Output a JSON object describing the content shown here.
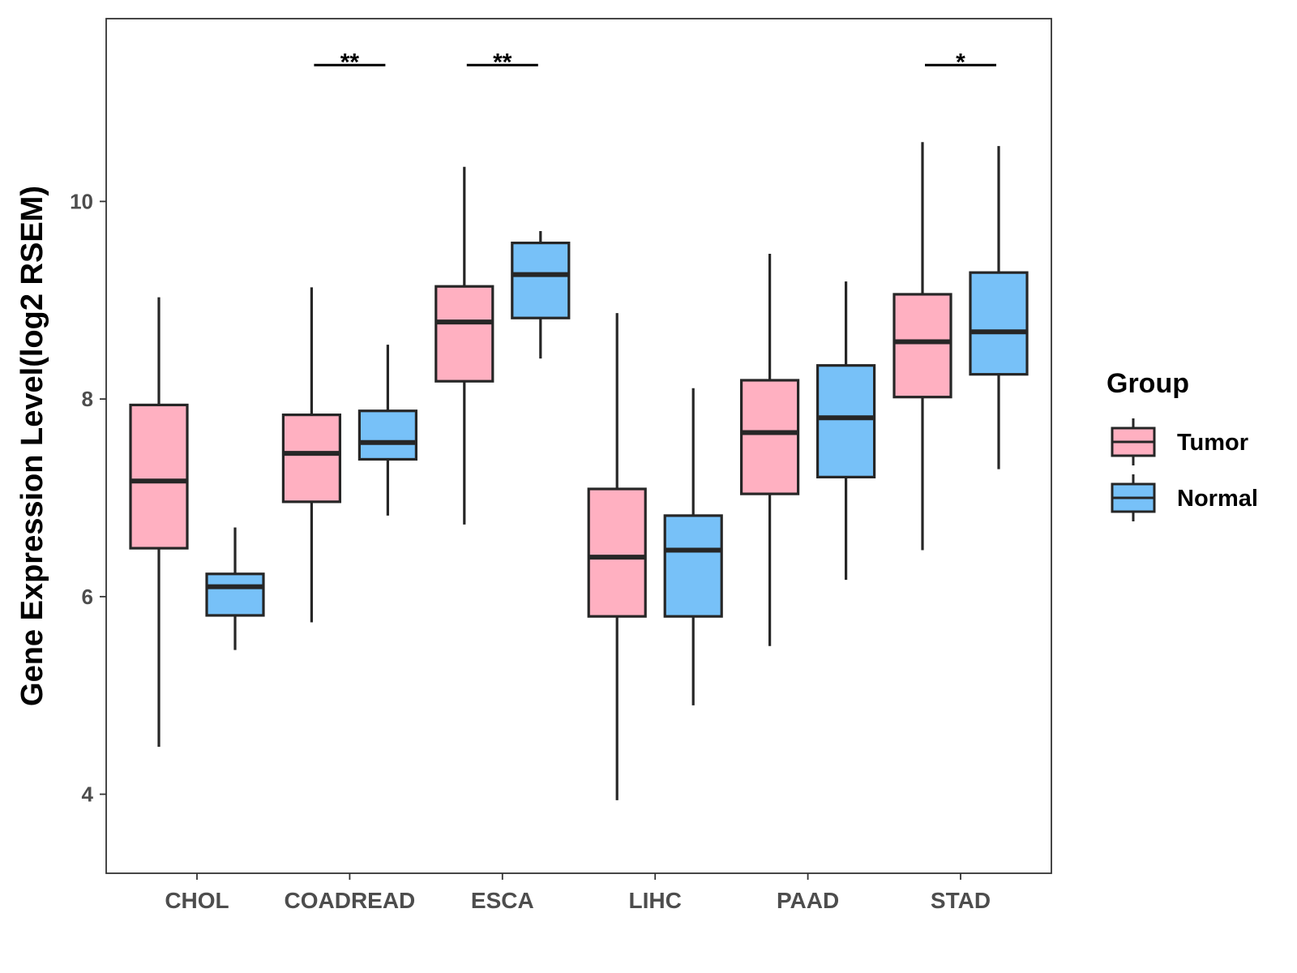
{
  "chart_data": {
    "type": "boxplot",
    "title": "",
    "xlabel": "",
    "ylabel": "Gene Expression Level(log2 RSEM)",
    "ylim": [
      3.2,
      11.85
    ],
    "yticks": [
      4,
      6,
      8,
      10
    ],
    "categories": [
      "CHOL",
      "COADREAD",
      "ESCA",
      "LIHC",
      "PAAD",
      "STAD"
    ],
    "legend": {
      "title": "Group",
      "position": "right"
    },
    "grid": false,
    "series": [
      {
        "name": "Tumor",
        "color": "#FFB0C1",
        "boxes": [
          {
            "min": 4.48,
            "q1": 6.49,
            "median": 7.17,
            "q3": 7.94,
            "max": 9.03
          },
          {
            "min": 5.74,
            "q1": 6.96,
            "median": 7.45,
            "q3": 7.84,
            "max": 9.13
          },
          {
            "min": 6.73,
            "q1": 8.18,
            "median": 8.78,
            "q3": 9.14,
            "max": 10.35
          },
          {
            "min": 3.94,
            "q1": 5.8,
            "median": 6.4,
            "q3": 7.09,
            "max": 8.87
          },
          {
            "min": 5.5,
            "q1": 7.04,
            "median": 7.66,
            "q3": 8.19,
            "max": 9.47
          },
          {
            "min": 6.47,
            "q1": 8.02,
            "median": 8.58,
            "q3": 9.06,
            "max": 10.6
          }
        ]
      },
      {
        "name": "Normal",
        "color": "#77C1F8",
        "boxes": [
          {
            "min": 5.46,
            "q1": 5.81,
            "median": 6.1,
            "q3": 6.23,
            "max": 6.7
          },
          {
            "min": 6.82,
            "q1": 7.39,
            "median": 7.56,
            "q3": 7.88,
            "max": 8.55
          },
          {
            "min": 8.41,
            "q1": 8.82,
            "median": 9.26,
            "q3": 9.58,
            "max": 9.7
          },
          {
            "min": 4.9,
            "q1": 5.8,
            "median": 6.47,
            "q3": 6.82,
            "max": 8.11
          },
          {
            "min": 6.17,
            "q1": 7.21,
            "median": 7.81,
            "q3": 8.34,
            "max": 9.19
          },
          {
            "min": 7.29,
            "q1": 8.25,
            "median": 8.68,
            "q3": 9.28,
            "max": 10.56
          }
        ]
      }
    ],
    "significance": [
      {
        "category": "COADREAD",
        "label": "**",
        "y": 11.38
      },
      {
        "category": "ESCA",
        "label": "**",
        "y": 11.38
      },
      {
        "category": "STAD",
        "label": "*",
        "y": 11.38
      }
    ]
  }
}
